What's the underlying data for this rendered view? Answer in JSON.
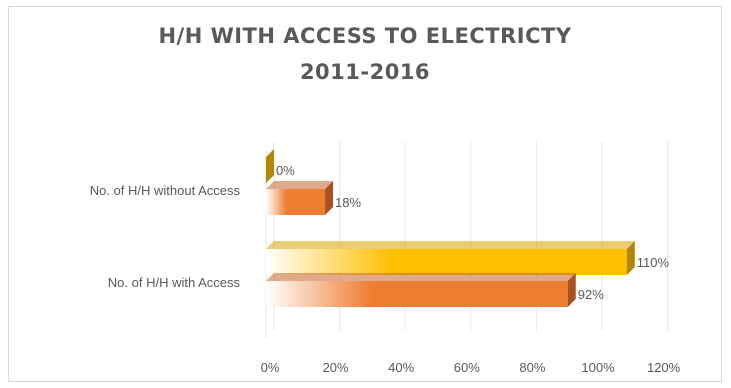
{
  "chart_data": {
    "type": "bar",
    "orientation": "horizontal",
    "style": "3d-gradient",
    "title_lines": [
      "H/H WITH ACCESS TO ELECTRICTY",
      "2011-2016"
    ],
    "categories": [
      "No. of H/H without Access",
      "No. of H/H with Access"
    ],
    "series": [
      {
        "values": [
          0,
          110
        ],
        "value_labels": [
          "0%",
          "110%"
        ],
        "color": "#ffc000"
      },
      {
        "values": [
          18,
          92
        ],
        "value_labels": [
          "18%",
          "92%"
        ],
        "color": "#ed7d31"
      }
    ],
    "x_ticks": [
      "0%",
      "20%",
      "40%",
      "60%",
      "80%",
      "100%",
      "120%"
    ],
    "xlim": [
      0,
      120
    ],
    "grid": true,
    "legend": "none"
  }
}
